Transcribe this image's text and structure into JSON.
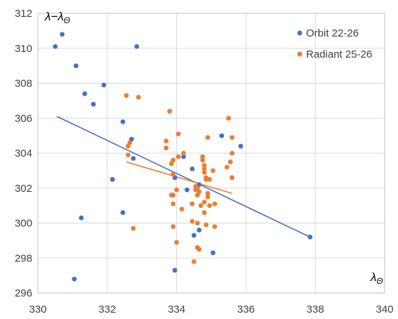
{
  "chart_data": {
    "type": "scatter",
    "xlabel": "λ",
    "xlabel_sub": "Θ",
    "ylabel": "λ−λ",
    "ylabel_sub": "Θ",
    "xlim": [
      330,
      340
    ],
    "ylim": [
      296,
      312
    ],
    "xticks": [
      330,
      332,
      334,
      336,
      338,
      340
    ],
    "yticks": [
      296,
      298,
      300,
      302,
      304,
      306,
      308,
      310,
      312
    ],
    "grid": true,
    "legend_position": "top-right",
    "series": [
      {
        "name": "Orbit 22-26",
        "color": "#4472C4",
        "points": [
          [
            330.5,
            310.1
          ],
          [
            330.7,
            310.8
          ],
          [
            331.1,
            309.0
          ],
          [
            331.35,
            307.4
          ],
          [
            331.6,
            306.8
          ],
          [
            331.9,
            307.9
          ],
          [
            332.45,
            305.8
          ],
          [
            332.85,
            310.1
          ],
          [
            332.7,
            304.8
          ],
          [
            332.75,
            303.7
          ],
          [
            332.15,
            302.5
          ],
          [
            332.45,
            300.6
          ],
          [
            331.25,
            300.3
          ],
          [
            331.05,
            296.8
          ],
          [
            333.95,
            302.6
          ],
          [
            334.2,
            303.8
          ],
          [
            334.3,
            301.9
          ],
          [
            334.45,
            303.1
          ],
          [
            334.65,
            302.2
          ],
          [
            334.5,
            299.3
          ],
          [
            334.65,
            299.6
          ],
          [
            333.95,
            297.3
          ],
          [
            335.05,
            298.3
          ],
          [
            335.3,
            305.0
          ],
          [
            335.85,
            304.4
          ],
          [
            337.85,
            299.2
          ]
        ],
        "trendline": [
          [
            330.55,
            306.1
          ],
          [
            337.85,
            299.2
          ]
        ]
      },
      {
        "name": "Radiant 25-26",
        "color": "#ED7D31",
        "points": [
          [
            332.55,
            307.3
          ],
          [
            332.9,
            307.2
          ],
          [
            333.8,
            306.4
          ],
          [
            332.6,
            304.4
          ],
          [
            332.65,
            304.6
          ],
          [
            332.6,
            303.9
          ],
          [
            332.75,
            299.7
          ],
          [
            333.7,
            304.7
          ],
          [
            333.7,
            304.3
          ],
          [
            333.85,
            303.4
          ],
          [
            333.9,
            303.6
          ],
          [
            333.9,
            302.8
          ],
          [
            334.05,
            305.1
          ],
          [
            334.05,
            303.8
          ],
          [
            334.2,
            304.0
          ],
          [
            333.85,
            301.6
          ],
          [
            333.9,
            301.6
          ],
          [
            333.9,
            301.1
          ],
          [
            333.9,
            299.8
          ],
          [
            334.0,
            301.9
          ],
          [
            334.0,
            298.9
          ],
          [
            334.15,
            300.8
          ],
          [
            334.45,
            301.1
          ],
          [
            334.45,
            300.1
          ],
          [
            334.5,
            297.8
          ],
          [
            334.55,
            302.1
          ],
          [
            334.55,
            301.9
          ],
          [
            334.6,
            302.0
          ],
          [
            334.6,
            301.6
          ],
          [
            334.65,
            301.8
          ],
          [
            334.65,
            298.5
          ],
          [
            334.6,
            300.0
          ],
          [
            334.7,
            301.0
          ],
          [
            334.75,
            303.8
          ],
          [
            334.75,
            303.6
          ],
          [
            334.8,
            303.3
          ],
          [
            334.8,
            303.1
          ],
          [
            334.8,
            302.9
          ],
          [
            334.85,
            302.6
          ],
          [
            334.85,
            302.5
          ],
          [
            334.8,
            301.2
          ],
          [
            334.8,
            300.6
          ],
          [
            334.9,
            304.9
          ],
          [
            334.9,
            301.7
          ],
          [
            334.9,
            301.5
          ],
          [
            334.95,
            302.5
          ],
          [
            334.95,
            301.0
          ],
          [
            334.85,
            299.9
          ],
          [
            335.05,
            303.0
          ],
          [
            335.1,
            301.1
          ],
          [
            335.1,
            299.8
          ],
          [
            335.45,
            303.2
          ],
          [
            335.5,
            306.0
          ],
          [
            335.55,
            303.5
          ],
          [
            335.6,
            304.9
          ],
          [
            335.6,
            304.0
          ],
          [
            335.6,
            302.6
          ],
          [
            334.6,
            298.6
          ]
        ],
        "trendline": [
          [
            332.55,
            303.5
          ],
          [
            335.6,
            301.7
          ]
        ]
      }
    ]
  }
}
